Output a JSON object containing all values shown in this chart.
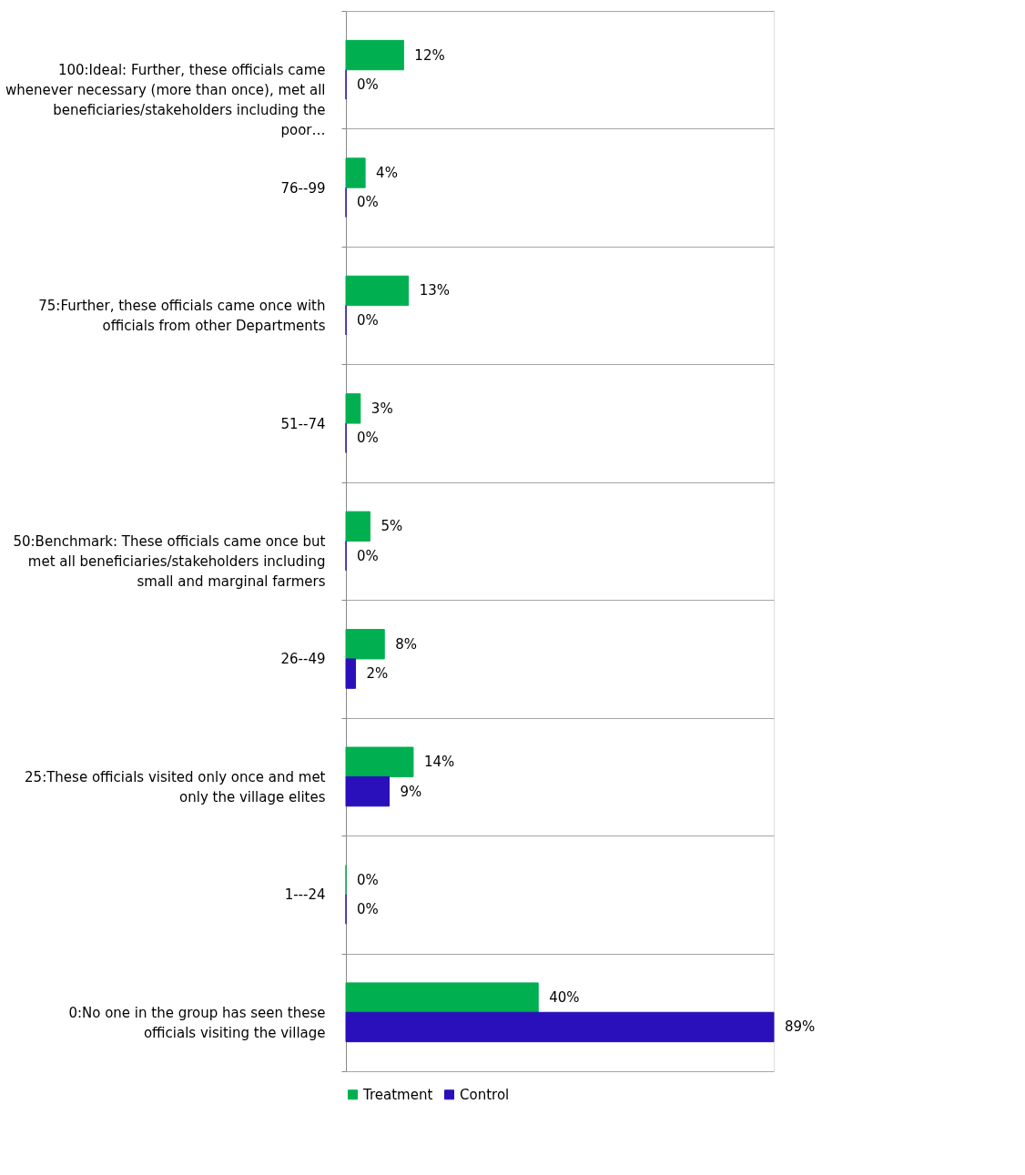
{
  "chart_data": {
    "type": "bar",
    "orientation": "horizontal",
    "categories": [
      "100:Ideal: Further, these officials came whenever necessary (more than once), met all beneficiaries/stakeholders including the poor…",
      "76--99",
      "75:Further, these officials came once with officials from other Departments",
      "51--74",
      "50:Benchmark: These officials came once but met all beneficiaries/stakeholders including small and marginal farmers",
      "26--49",
      "25:These officials visited only once and met only the village elites",
      "1---24",
      "0:No one in the group has seen these officials visiting the village"
    ],
    "series": [
      {
        "name": "Treatment",
        "color": "#00b050",
        "values": [
          12,
          4,
          13,
          3,
          5,
          8,
          14,
          0,
          40
        ],
        "value_labels": [
          "12%",
          "4%",
          "13%",
          "3%",
          "5%",
          "8%",
          "14%",
          "0%",
          "40%"
        ]
      },
      {
        "name": "Control",
        "color": "#2a10ba",
        "values": [
          0,
          0,
          0,
          0,
          0,
          2,
          9,
          0,
          89
        ],
        "value_labels": [
          "0%",
          "0%",
          "0%",
          "0%",
          "0%",
          "2%",
          "9%",
          "0%",
          "89%"
        ]
      }
    ],
    "grid": "y",
    "legend": "bottom",
    "tick_labels": "y"
  }
}
